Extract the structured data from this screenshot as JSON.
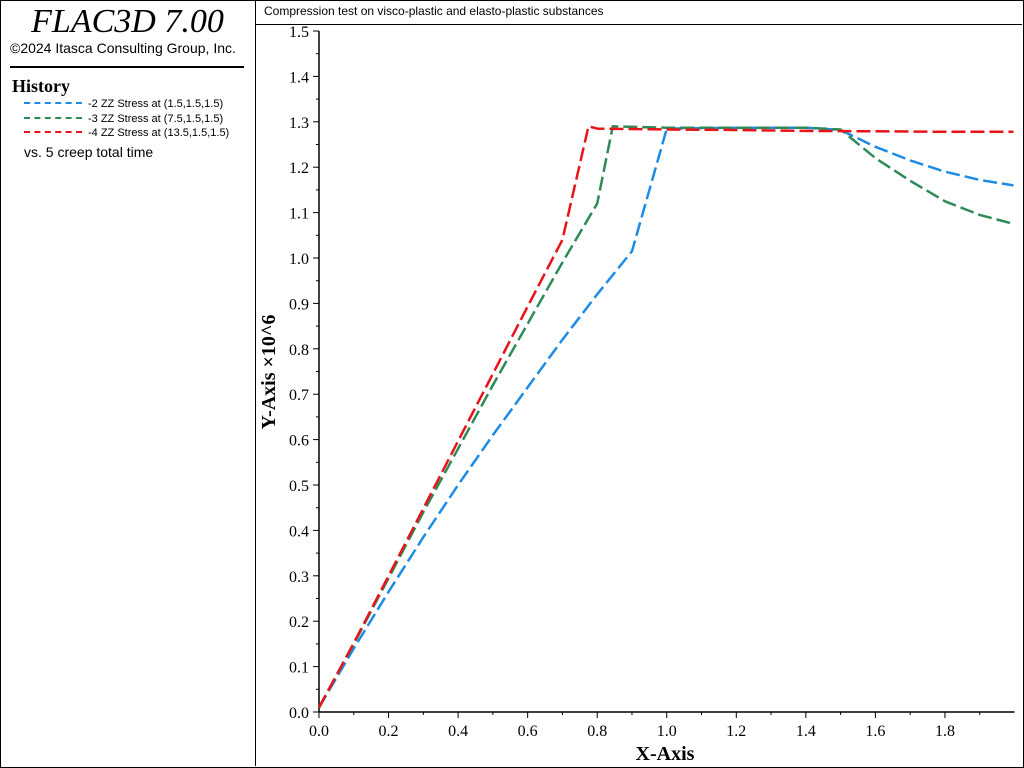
{
  "app": {
    "title": "FLAC3D 7.00",
    "copyright": "©2024 Itasca Consulting Group, Inc."
  },
  "history": {
    "heading": "History",
    "vs_label": "vs. 5 creep total time"
  },
  "chart_data": {
    "type": "line",
    "title": "Compression test on visco-plastic and elasto-plastic substances",
    "xlabel": "X-Axis",
    "ylabel": "Y-Axis ×10^6",
    "xlim": [
      0,
      2.0
    ],
    "ylim": [
      0,
      1.5
    ],
    "xticks": [
      "0.0",
      "0.2",
      "0.4",
      "0.6",
      "0.8",
      "1.0",
      "1.2",
      "1.4",
      "1.6",
      "1.8"
    ],
    "yticks": [
      "0.0",
      "0.1",
      "0.2",
      "0.3",
      "0.4",
      "0.5",
      "0.6",
      "0.7",
      "0.8",
      "0.9",
      "1.0",
      "1.1",
      "1.2",
      "1.3",
      "1.4",
      "1.5"
    ],
    "grid": false,
    "line_style": "dashed",
    "series": [
      {
        "name": "-2 ZZ Stress at (1.5,1.5,1.5)",
        "color": "#1e8ce6",
        "points": [
          [
            0,
            0.01
          ],
          [
            0.1,
            0.14
          ],
          [
            0.2,
            0.265
          ],
          [
            0.3,
            0.385
          ],
          [
            0.4,
            0.5
          ],
          [
            0.5,
            0.61
          ],
          [
            0.6,
            0.715
          ],
          [
            0.7,
            0.82
          ],
          [
            0.8,
            0.92
          ],
          [
            0.9,
            1.015
          ],
          [
            1.0,
            1.285
          ],
          [
            1.2,
            1.287
          ],
          [
            1.4,
            1.287
          ],
          [
            1.5,
            1.282
          ],
          [
            1.6,
            1.245
          ],
          [
            1.7,
            1.215
          ],
          [
            1.8,
            1.19
          ],
          [
            1.9,
            1.172
          ],
          [
            1.997,
            1.16
          ]
        ]
      },
      {
        "name": "-3 ZZ Stress at (7.5,1.5,1.5)",
        "color": "#2e8b57",
        "points": [
          [
            0,
            0.01
          ],
          [
            0.1,
            0.15
          ],
          [
            0.2,
            0.295
          ],
          [
            0.3,
            0.44
          ],
          [
            0.4,
            0.58
          ],
          [
            0.5,
            0.72
          ],
          [
            0.6,
            0.855
          ],
          [
            0.7,
            0.99
          ],
          [
            0.8,
            1.12
          ],
          [
            0.845,
            1.29
          ],
          [
            1.0,
            1.287
          ],
          [
            1.2,
            1.287
          ],
          [
            1.4,
            1.287
          ],
          [
            1.5,
            1.283
          ],
          [
            1.6,
            1.22
          ],
          [
            1.7,
            1.17
          ],
          [
            1.8,
            1.125
          ],
          [
            1.9,
            1.095
          ],
          [
            1.997,
            1.075
          ]
        ]
      },
      {
        "name": "-4 ZZ Stress at (13.5,1.5,1.5)",
        "color": "#e8141a",
        "points": [
          [
            0,
            0.01
          ],
          [
            0.1,
            0.152
          ],
          [
            0.2,
            0.3
          ],
          [
            0.3,
            0.448
          ],
          [
            0.4,
            0.597
          ],
          [
            0.5,
            0.745
          ],
          [
            0.6,
            0.893
          ],
          [
            0.7,
            1.04
          ],
          [
            0.775,
            1.29
          ],
          [
            0.8,
            1.285
          ],
          [
            1.0,
            1.283
          ],
          [
            1.2,
            1.282
          ],
          [
            1.4,
            1.28
          ],
          [
            1.6,
            1.279
          ],
          [
            1.8,
            1.278
          ],
          [
            1.997,
            1.278
          ]
        ]
      }
    ]
  }
}
